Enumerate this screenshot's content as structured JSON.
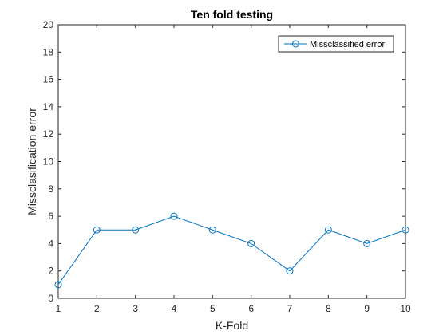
{
  "chart_data": {
    "type": "line",
    "title": "Ten fold testing",
    "xlabel": "K-Fold",
    "ylabel": "Missclasification error",
    "x": [
      1,
      2,
      3,
      4,
      5,
      6,
      7,
      8,
      9,
      10
    ],
    "series": [
      {
        "name": "Missclassified error",
        "values": [
          1,
          5,
          5,
          6,
          5,
          4,
          2,
          5,
          4,
          5
        ],
        "color": "#0072BD",
        "marker": "circle"
      }
    ],
    "xlim": [
      1,
      10
    ],
    "ylim": [
      0,
      20
    ],
    "xticks": [
      1,
      2,
      3,
      4,
      5,
      6,
      7,
      8,
      9,
      10
    ],
    "yticks": [
      0,
      2,
      4,
      6,
      8,
      10,
      12,
      14,
      16,
      18,
      20
    ],
    "grid": false,
    "legend_position": "top-right"
  }
}
